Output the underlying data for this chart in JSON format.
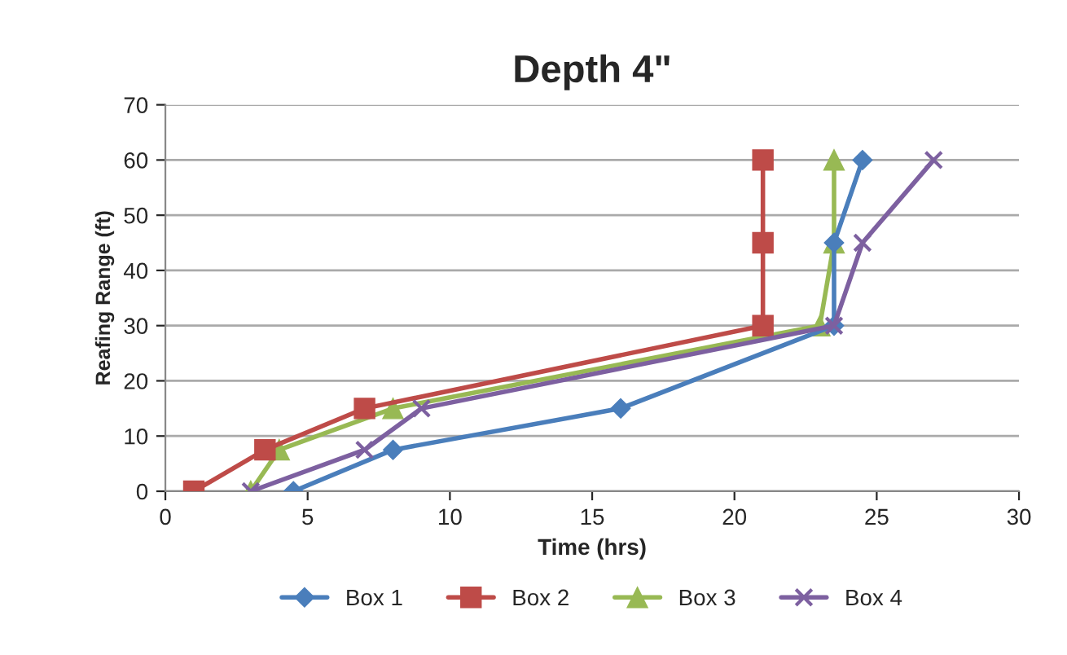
{
  "chart_data": {
    "type": "line",
    "title": "Depth 4\"",
    "xlabel": "Time (hrs)",
    "ylabel": "Reafing Range (ft)",
    "xlim": [
      0,
      30
    ],
    "xticks": [
      0,
      5,
      10,
      15,
      20,
      25,
      30
    ],
    "ylim": [
      0,
      70
    ],
    "yticks": [
      0,
      10,
      20,
      30,
      40,
      50,
      60,
      70
    ],
    "grid": "y",
    "legend": "bottom",
    "line_style": "solid",
    "series": [
      {
        "name": "Box 1",
        "color": "#4a7ebb",
        "marker": "diamond",
        "x": [
          4.5,
          8,
          16,
          23.5,
          23.5,
          24.5
        ],
        "values": [
          0,
          7.5,
          15,
          30,
          45,
          60
        ]
      },
      {
        "name": "Box 2",
        "color": "#be4b48",
        "marker": "square",
        "x": [
          1,
          3.5,
          7,
          21,
          21,
          21
        ],
        "values": [
          0,
          7.5,
          15,
          30,
          45,
          60
        ]
      },
      {
        "name": "Box 3",
        "color": "#98b954",
        "marker": "triangle",
        "x": [
          3,
          4,
          8,
          23,
          23.5,
          23.5
        ],
        "values": [
          0,
          7.5,
          15,
          30,
          45,
          60
        ]
      },
      {
        "name": "Box 4",
        "color": "#7d60a0",
        "marker": "cross",
        "x": [
          3,
          7,
          9,
          23.5,
          24.5,
          27
        ],
        "values": [
          0,
          7.5,
          15,
          30,
          45,
          60
        ]
      }
    ]
  }
}
